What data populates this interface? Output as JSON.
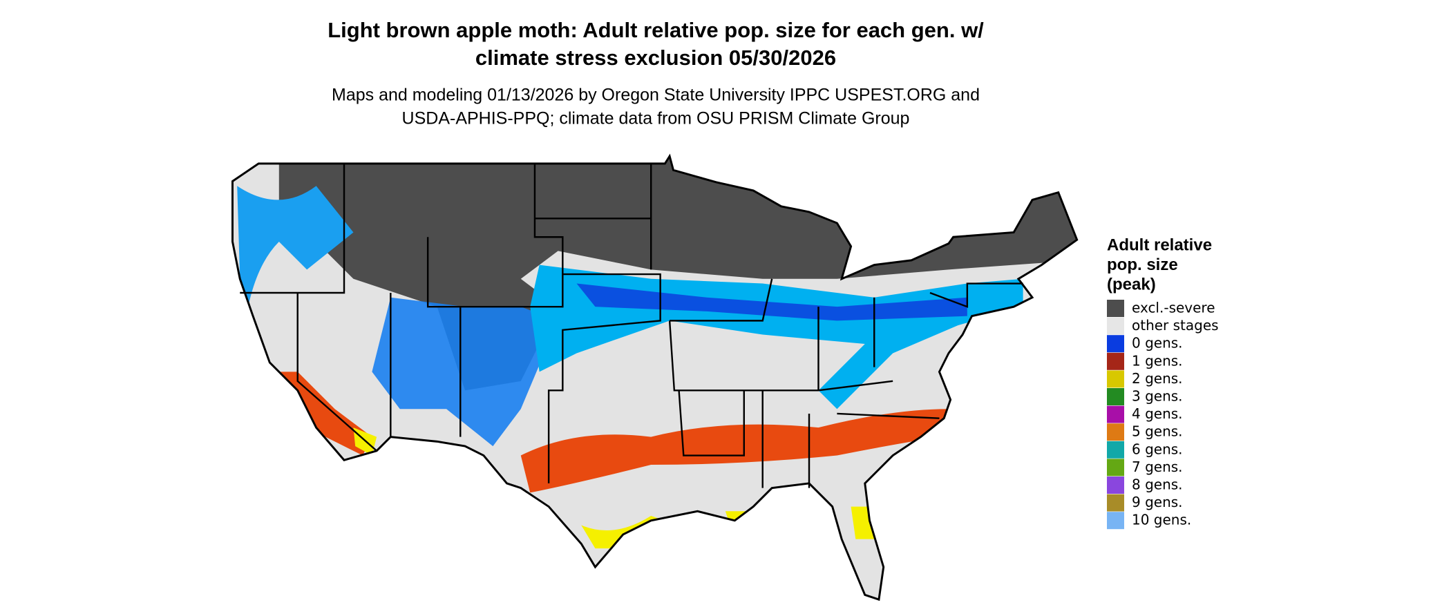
{
  "header": {
    "title": [
      "Light brown apple moth: Adult relative pop. size for each gen. w/",
      "climate stress exclusion 05/30/2026"
    ],
    "subtitle": [
      "Maps and modeling 01/13/2026 by Oregon State University IPPC USPEST.ORG and",
      "USDA-APHIS-PPQ; climate data from OSU PRISM Climate Group"
    ]
  },
  "legend": {
    "title": [
      "Adult relative",
      "pop. size",
      "(peak)"
    ],
    "items": [
      {
        "label": "excl.-severe",
        "color": "#4d4d4d"
      },
      {
        "label": "other stages",
        "color": "#e6e6e6"
      },
      {
        "label": "0 gens.",
        "color": "#0a3ce0"
      },
      {
        "label": "1 gens.",
        "color": "#a52618"
      },
      {
        "label": "2 gens.",
        "color": "#d8c800"
      },
      {
        "label": "3 gens.",
        "color": "#238b22"
      },
      {
        "label": "4 gens.",
        "color": "#a80fa8"
      },
      {
        "label": "5 gens.",
        "color": "#de7a14"
      },
      {
        "label": "6 gens.",
        "color": "#12a8a8"
      },
      {
        "label": "7 gens.",
        "color": "#64a814"
      },
      {
        "label": "8 gens.",
        "color": "#8a46de"
      },
      {
        "label": "9 gens.",
        "color": "#a88c28"
      },
      {
        "label": "10 gens.",
        "color": "#78b4f4"
      }
    ]
  }
}
